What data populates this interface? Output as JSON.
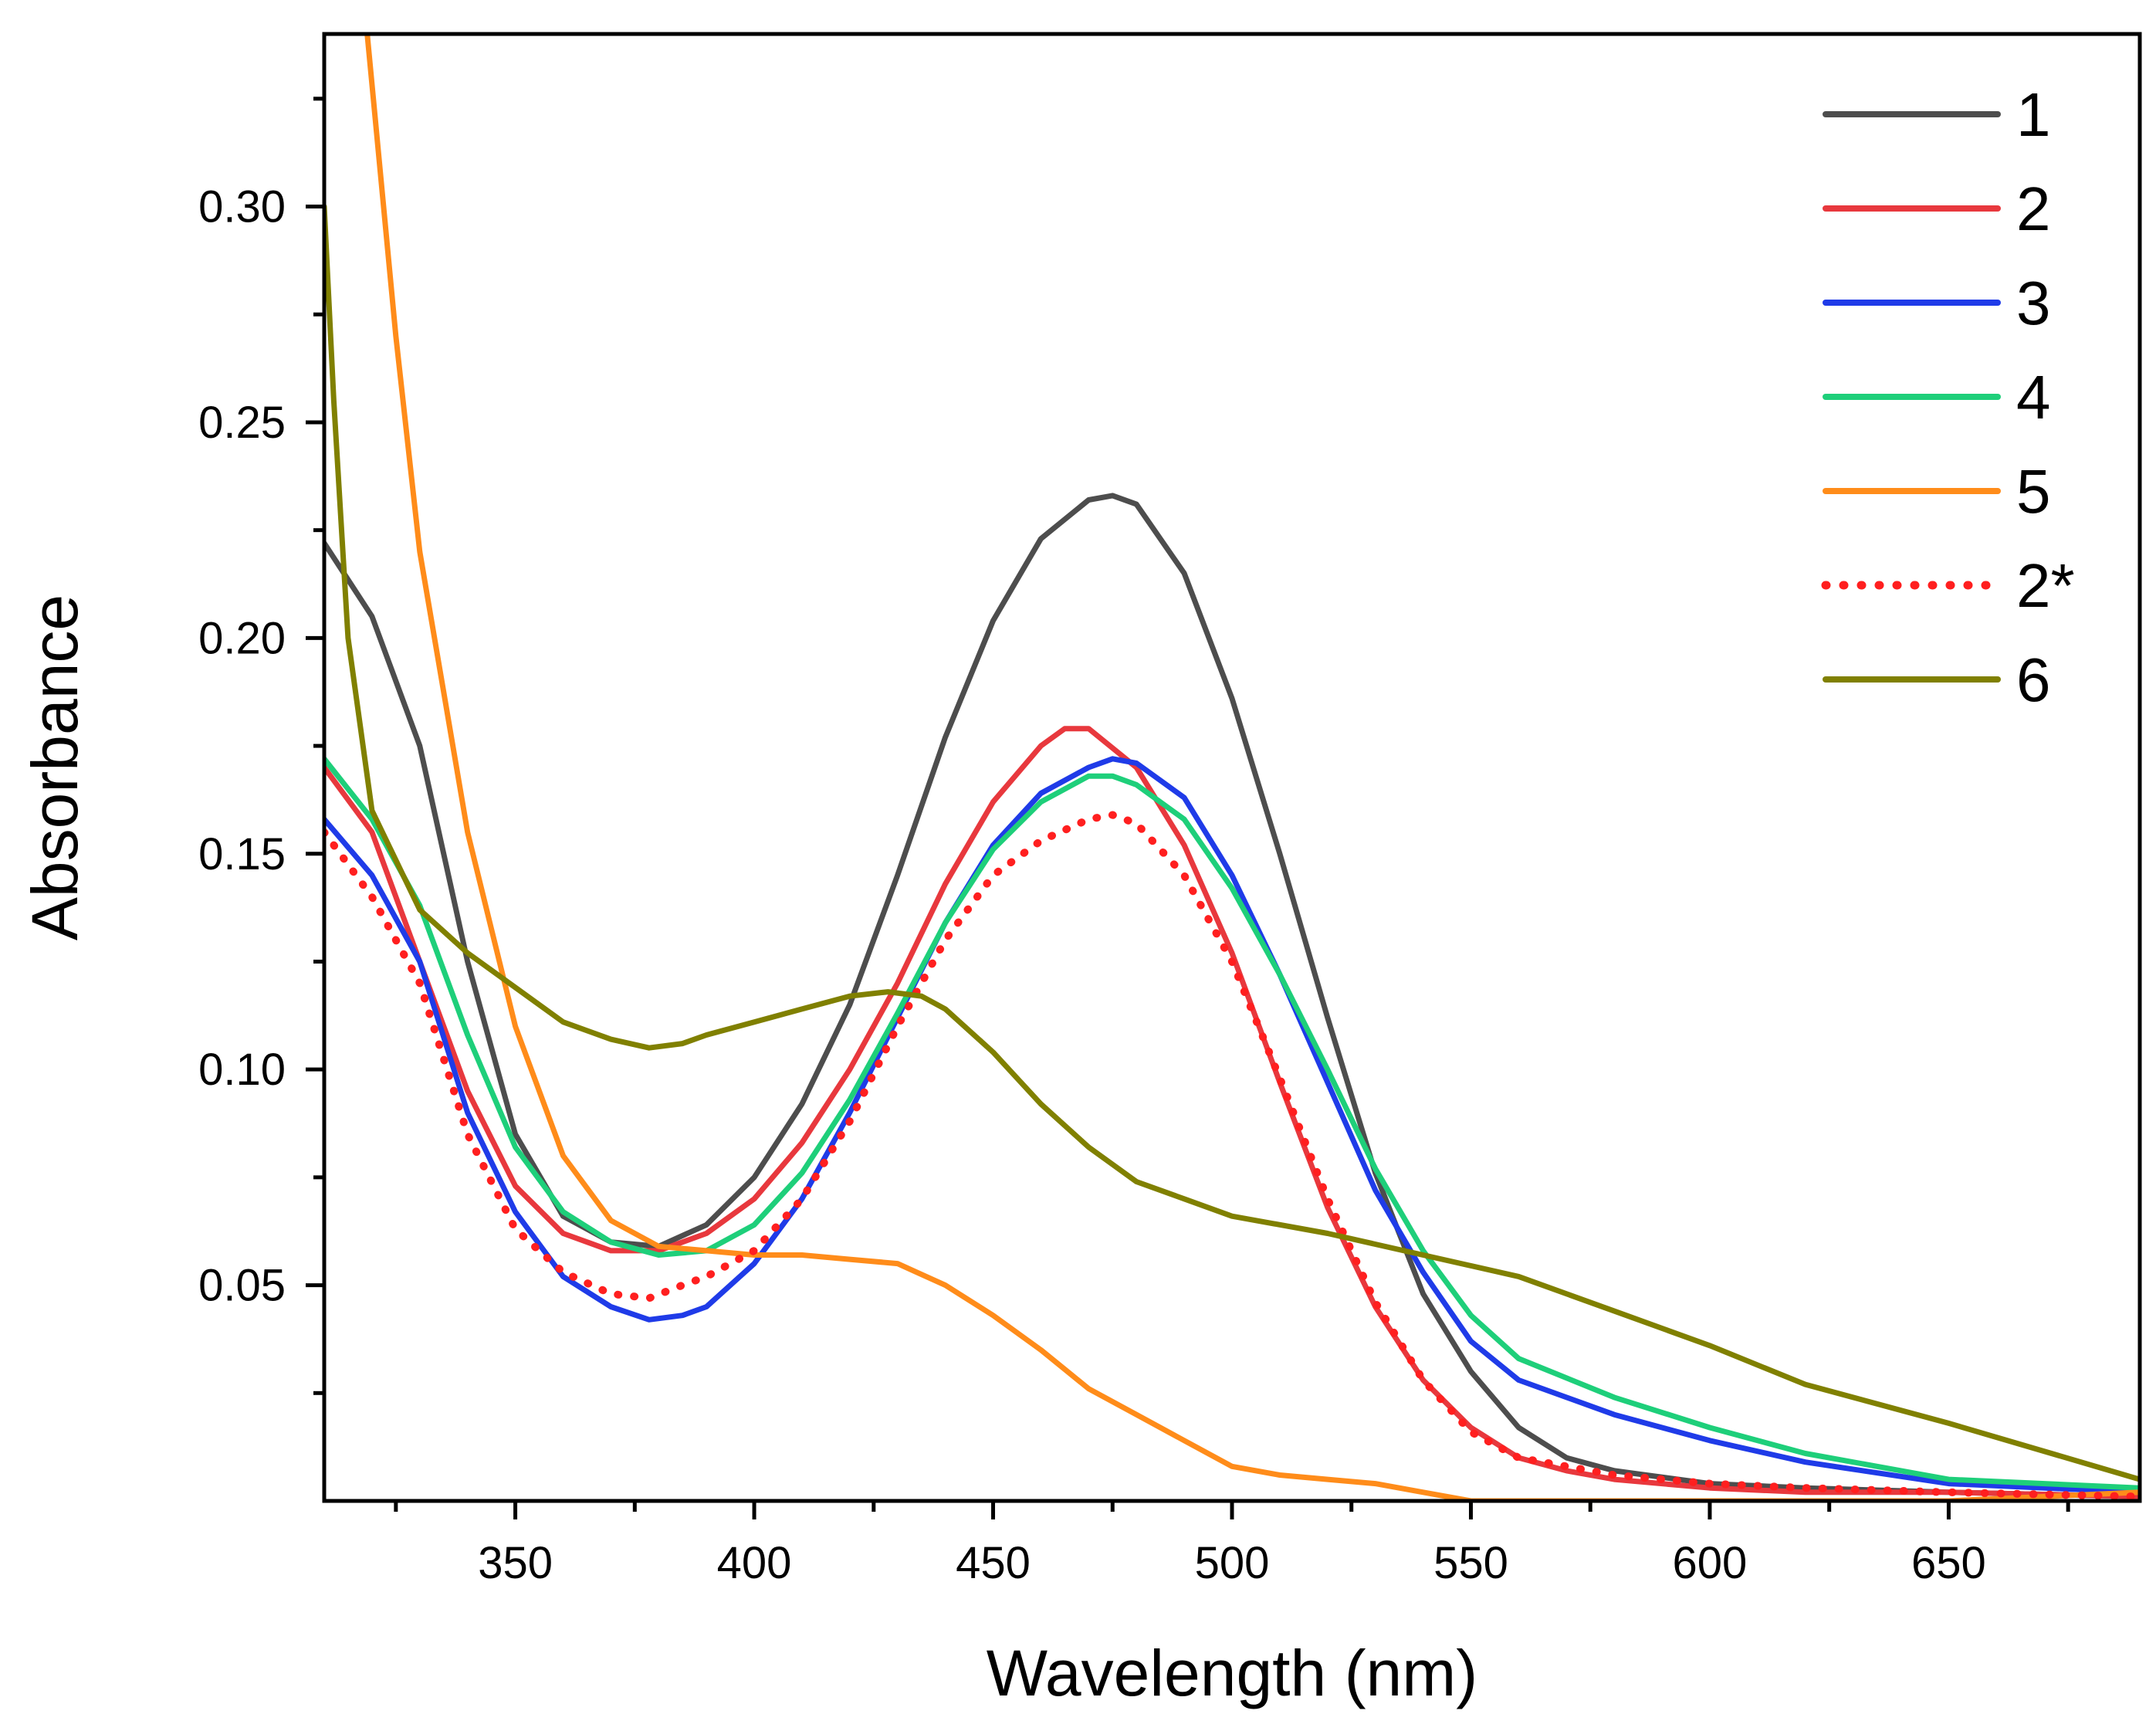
{
  "chart_data": {
    "type": "line",
    "xlabel": "Wavelength (nm)",
    "ylabel": "Absorbance",
    "xlim": [
      310,
      690
    ],
    "ylim": [
      0.0,
      0.34
    ],
    "x_ticks": [
      350,
      400,
      450,
      500,
      550,
      600,
      650
    ],
    "x_tick_labels": [
      "350",
      "400",
      "450",
      "500",
      "550",
      "600",
      "650"
    ],
    "y_ticks": [
      0.05,
      0.1,
      0.15,
      0.2,
      0.25,
      0.3
    ],
    "y_tick_labels": [
      "0.05",
      "0.10",
      "0.15",
      "0.20",
      "0.25",
      "0.30"
    ],
    "grid": false,
    "legend_position": "top-right",
    "series": [
      {
        "name": "1",
        "color": "#4d4d4d",
        "dash": "solid",
        "x": [
          310,
          320,
          330,
          340,
          350,
          360,
          370,
          380,
          390,
          400,
          410,
          420,
          430,
          440,
          450,
          460,
          470,
          475,
          480,
          490,
          500,
          510,
          520,
          530,
          540,
          550,
          560,
          570,
          580,
          600,
          620,
          650,
          690
        ],
        "y": [
          0.222,
          0.205,
          0.175,
          0.125,
          0.085,
          0.066,
          0.06,
          0.059,
          0.064,
          0.075,
          0.092,
          0.115,
          0.145,
          0.177,
          0.204,
          0.223,
          0.232,
          0.233,
          0.231,
          0.215,
          0.186,
          0.15,
          0.112,
          0.076,
          0.048,
          0.03,
          0.017,
          0.01,
          0.007,
          0.004,
          0.003,
          0.002,
          0.001
        ]
      },
      {
        "name": "2",
        "color": "#e8383d",
        "dash": "solid",
        "x": [
          310,
          320,
          330,
          340,
          350,
          360,
          370,
          380,
          390,
          400,
          410,
          420,
          430,
          440,
          450,
          460,
          465,
          470,
          480,
          490,
          500,
          510,
          520,
          530,
          540,
          550,
          560,
          570,
          580,
          600,
          620,
          650,
          690
        ],
        "y": [
          0.17,
          0.155,
          0.125,
          0.095,
          0.073,
          0.062,
          0.058,
          0.058,
          0.062,
          0.07,
          0.083,
          0.1,
          0.12,
          0.143,
          0.162,
          0.175,
          0.179,
          0.179,
          0.17,
          0.152,
          0.127,
          0.097,
          0.068,
          0.045,
          0.028,
          0.017,
          0.01,
          0.007,
          0.005,
          0.003,
          0.002,
          0.002,
          0.001
        ]
      },
      {
        "name": "3",
        "color": "#1f3be8",
        "dash": "solid",
        "x": [
          310,
          320,
          330,
          340,
          350,
          360,
          370,
          378,
          385,
          390,
          400,
          410,
          420,
          430,
          440,
          450,
          460,
          470,
          475,
          480,
          490,
          500,
          510,
          520,
          530,
          540,
          550,
          560,
          580,
          600,
          620,
          650,
          690
        ],
        "y": [
          0.158,
          0.145,
          0.125,
          0.09,
          0.067,
          0.052,
          0.045,
          0.042,
          0.043,
          0.045,
          0.055,
          0.07,
          0.09,
          0.112,
          0.134,
          0.152,
          0.164,
          0.17,
          0.172,
          0.171,
          0.163,
          0.145,
          0.122,
          0.097,
          0.072,
          0.053,
          0.037,
          0.028,
          0.02,
          0.014,
          0.009,
          0.004,
          0.002
        ]
      },
      {
        "name": "4",
        "color": "#1ecf7a",
        "dash": "solid",
        "x": [
          310,
          320,
          330,
          340,
          350,
          360,
          370,
          380,
          390,
          400,
          410,
          420,
          430,
          440,
          450,
          460,
          470,
          475,
          480,
          490,
          500,
          510,
          520,
          530,
          540,
          550,
          560,
          580,
          600,
          620,
          650,
          690
        ],
        "y": [
          0.172,
          0.158,
          0.138,
          0.108,
          0.082,
          0.067,
          0.06,
          0.057,
          0.058,
          0.064,
          0.076,
          0.093,
          0.113,
          0.134,
          0.151,
          0.162,
          0.168,
          0.168,
          0.166,
          0.158,
          0.142,
          0.122,
          0.1,
          0.077,
          0.058,
          0.043,
          0.033,
          0.024,
          0.017,
          0.011,
          0.005,
          0.003
        ]
      },
      {
        "name": "5",
        "color": "#ff8c1a",
        "dash": "solid",
        "x": [
          319,
          325,
          330,
          340,
          350,
          360,
          370,
          380,
          390,
          400,
          410,
          420,
          430,
          440,
          450,
          460,
          470,
          480,
          490,
          500,
          510,
          520,
          530,
          540,
          550,
          570,
          600,
          650,
          690
        ],
        "y": [
          0.34,
          0.27,
          0.22,
          0.155,
          0.11,
          0.08,
          0.065,
          0.059,
          0.058,
          0.057,
          0.057,
          0.056,
          0.055,
          0.05,
          0.043,
          0.035,
          0.026,
          0.02,
          0.014,
          0.008,
          0.006,
          0.005,
          0.004,
          0.002,
          0.0,
          0.0,
          0.0,
          0.0,
          0.002
        ]
      },
      {
        "name": "2*",
        "color": "#ff1f1f",
        "dash": "dotted",
        "x": [
          310,
          320,
          330,
          340,
          350,
          360,
          370,
          378,
          385,
          390,
          400,
          410,
          420,
          430,
          440,
          450,
          460,
          470,
          475,
          480,
          490,
          500,
          510,
          520,
          530,
          540,
          550,
          560,
          580,
          600,
          620,
          650,
          690
        ],
        "y": [
          0.155,
          0.14,
          0.12,
          0.085,
          0.063,
          0.053,
          0.048,
          0.047,
          0.05,
          0.052,
          0.058,
          0.07,
          0.088,
          0.11,
          0.13,
          0.145,
          0.153,
          0.158,
          0.159,
          0.157,
          0.145,
          0.125,
          0.098,
          0.07,
          0.046,
          0.028,
          0.016,
          0.01,
          0.006,
          0.004,
          0.003,
          0.002,
          0.001
        ]
      },
      {
        "name": "6",
        "color": "#808000",
        "dash": "solid",
        "x": [
          310,
          312,
          315,
          320,
          330,
          340,
          350,
          360,
          370,
          378,
          385,
          390,
          400,
          410,
          420,
          428,
          435,
          440,
          450,
          460,
          470,
          480,
          490,
          500,
          520,
          540,
          560,
          580,
          600,
          620,
          650,
          690
        ],
        "y": [
          0.3,
          0.255,
          0.2,
          0.16,
          0.137,
          0.127,
          0.119,
          0.111,
          0.107,
          0.105,
          0.106,
          0.108,
          0.111,
          0.114,
          0.117,
          0.118,
          0.117,
          0.114,
          0.104,
          0.092,
          0.082,
          0.074,
          0.07,
          0.066,
          0.062,
          0.057,
          0.052,
          0.044,
          0.036,
          0.027,
          0.018,
          0.005
        ]
      }
    ]
  }
}
